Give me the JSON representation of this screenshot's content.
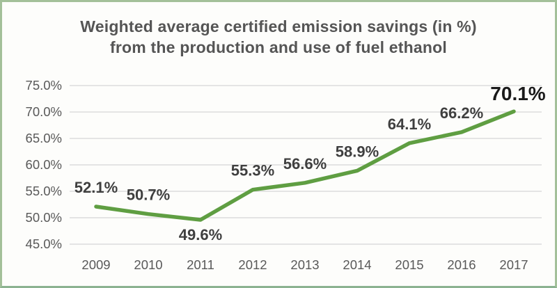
{
  "chart": {
    "title_line1": "Weighted average certified emission savings (in %)",
    "title_line2": "from the production and use of fuel ethanol"
  },
  "chart_data": {
    "type": "line",
    "title": "Weighted average certified emission savings (in %) from the production and use of fuel ethanol",
    "categories": [
      "2009",
      "2010",
      "2011",
      "2012",
      "2013",
      "2014",
      "2015",
      "2016",
      "2017"
    ],
    "series": [
      {
        "name": "Weighted average certified emission savings (%)",
        "values": [
          52.1,
          50.7,
          49.6,
          55.3,
          56.6,
          58.9,
          64.1,
          66.2,
          70.1
        ]
      }
    ],
    "data_labels": [
      "52.1%",
      "50.7%",
      "49.6%",
      "55.3%",
      "56.6%",
      "58.9%",
      "64.1%",
      "66.2%",
      "70.1%"
    ],
    "label_positions": [
      "above",
      "above",
      "below",
      "above",
      "above",
      "above",
      "above",
      "above",
      "above"
    ],
    "emphasize_last_label": true,
    "xlabel": "",
    "ylabel": "",
    "ylim": [
      45,
      75
    ],
    "ytick_step": 5,
    "ytick_labels": [
      "45.0%",
      "50.0%",
      "55.0%",
      "60.0%",
      "65.0%",
      "70.0%",
      "75.0%"
    ],
    "grid": true,
    "legend": "none",
    "colors": {
      "line": "#5f9e42",
      "grid": "#dcdcdc",
      "axis_text": "#595959",
      "label_text": "#3f3f3f",
      "emphasis_text": "#1a1a1a",
      "title_text": "#555555",
      "frame_border": "#a3c099",
      "background": "#fdfdfb"
    }
  }
}
